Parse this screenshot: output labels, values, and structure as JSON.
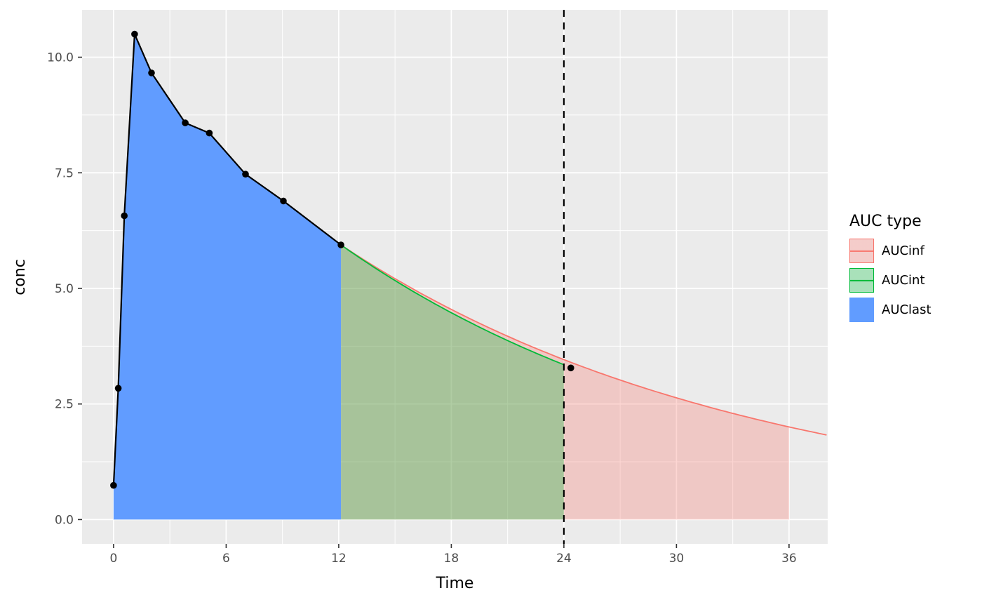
{
  "figure": {
    "background": "#FFFFFF",
    "panel_background": "#EBEBEB",
    "grid_major_color": "#FFFFFF",
    "grid_minor_color": "#FFFFFF",
    "tick_mark_color": "#333333",
    "tick_label_color": "#4D4D4D"
  },
  "axes": {
    "x": {
      "title": "Time",
      "tick_labels": [
        "0",
        "6",
        "12",
        "18",
        "24",
        "30",
        "36"
      ],
      "tick_values": [
        0,
        6,
        12,
        18,
        24,
        30,
        36
      ],
      "minor_values": [
        3,
        9,
        15,
        21,
        27,
        33
      ],
      "range": [
        -1.68,
        38.06
      ]
    },
    "y": {
      "title": "conc",
      "tick_labels": [
        "0.0",
        "2.5",
        "5.0",
        "7.5",
        "10.0"
      ],
      "tick_values": [
        0,
        2.5,
        5,
        7.5,
        10
      ],
      "minor_values": [
        1.25,
        3.75,
        6.25,
        8.75
      ],
      "range": [
        -0.525,
        11.025
      ]
    }
  },
  "legend": {
    "title": "AUC type",
    "key_background": "#F2F2F2",
    "items": [
      {
        "label": "AUCinf",
        "line_color": "#F8766D",
        "fill_color": "rgba(248,118,109,0.30)"
      },
      {
        "label": "AUCint",
        "line_color": "#00BA38",
        "fill_color": "rgba(0,186,56,0.30)"
      },
      {
        "label": "AUClast",
        "line_color": "#619CFF",
        "fill_color": "#619CFF"
      }
    ]
  },
  "chart_data": {
    "type": "area",
    "title": "",
    "xlabel": "Time",
    "ylabel": "conc",
    "xlim": [
      -1.68,
      38.06
    ],
    "ylim": [
      -0.525,
      11.025
    ],
    "x_ticks": [
      0,
      6,
      12,
      18,
      24,
      30,
      36
    ],
    "y_ticks": [
      0,
      2.5,
      5,
      7.5,
      10
    ],
    "grid": true,
    "legend_position": "right",
    "observed_points": {
      "x": [
        0,
        0.25,
        0.57,
        1.12,
        2.02,
        3.82,
        5.1,
        7.03,
        9.05,
        12.12,
        24.37
      ],
      "y": [
        0.74,
        2.84,
        6.57,
        10.5,
        9.66,
        8.58,
        8.36,
        7.47,
        6.89,
        5.94,
        3.28
      ]
    },
    "observed_line_end_index": 9,
    "terminal_fit": {
      "t_last": 12.12,
      "c_last": 5.94,
      "k_int": 0.0482,
      "k_inf": 0.0455
    },
    "regions": [
      {
        "name": "AUCinf",
        "from": 12.12,
        "to": 36,
        "boundary": "exp",
        "k": "k_inf",
        "fill": "#F8766D",
        "opacity": 0.3
      },
      {
        "name": "AUCint",
        "from": 12.12,
        "to": 24,
        "boundary": "exp",
        "k": "k_int",
        "fill": "#00BA38",
        "opacity": 0.3
      },
      {
        "name": "AUClast",
        "from": 0,
        "to": 12.12,
        "boundary": "observed",
        "k": "",
        "fill": "#619CFF",
        "opacity": 1.0
      }
    ],
    "lines": [
      {
        "name": "aucinf-extrapolation-line",
        "from": 12.12,
        "to": 38.0,
        "k": "k_inf",
        "color": "#F8766D",
        "width": 1.8
      },
      {
        "name": "aucint-interpolation-line",
        "from": 12.12,
        "to": 24,
        "k": "k_int",
        "color": "#00BA38",
        "width": 1.8
      }
    ],
    "observed_line": {
      "color": "#000000",
      "width": 2.2
    },
    "point_style": {
      "color": "#000000",
      "radius": 4.8
    },
    "vline": {
      "x": 24,
      "style": "dashed",
      "color": "#000000",
      "width": 2.2,
      "dash": "10 8"
    }
  }
}
